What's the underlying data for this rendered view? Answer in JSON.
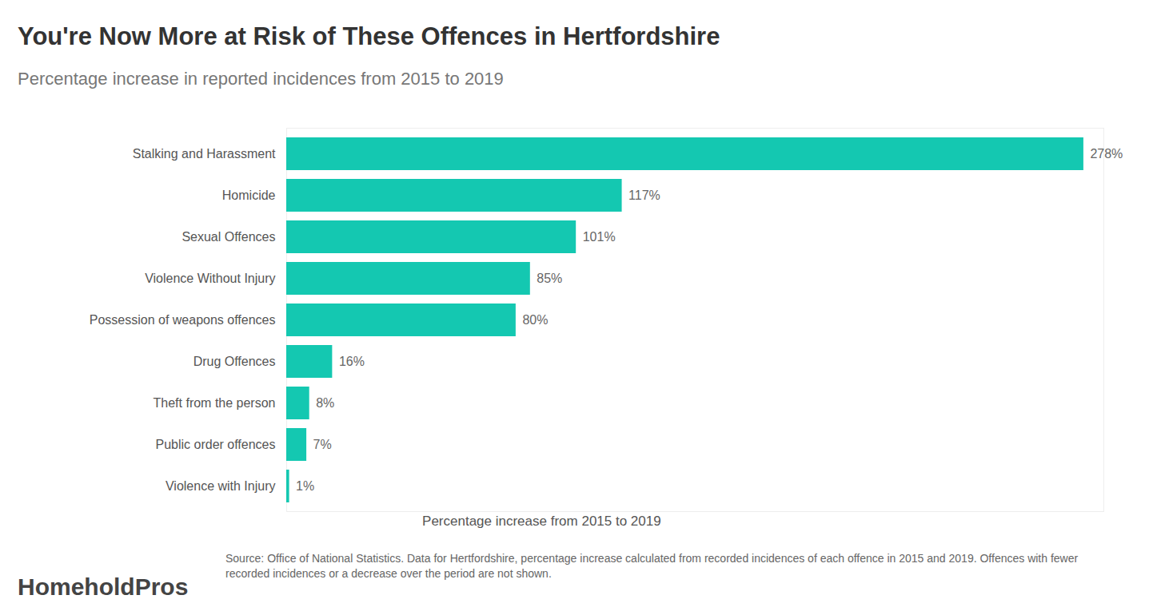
{
  "chart_data": {
    "type": "bar",
    "orientation": "horizontal",
    "title": "You're Now More at Risk of These Offences in Hertfordshire",
    "subtitle": "Percentage increase in reported incidences from 2015 to 2019",
    "x_label": "Percentage increase from 2015 to 2019",
    "categories": [
      "Stalking and Harassment",
      "Homicide",
      "Sexual Offences",
      "Violence Without Injury",
      "Possession of weapons offences",
      "Drug Offences",
      "Theft from the person",
      "Public order offences",
      "Violence with Injury"
    ],
    "values": [
      278,
      117,
      101,
      85,
      80,
      16,
      8,
      7,
      1
    ],
    "value_labels": [
      "278%",
      "117%",
      "101%",
      "85%",
      "80%",
      "16%",
      "8%",
      "7%",
      "1%"
    ],
    "color": "#14c8b1",
    "xlim": [
      0,
      285
    ],
    "xticks": [],
    "grid": false,
    "data_labels": true,
    "tick_labels": "y",
    "caption": "Source: Office of National Statistics. Data for Hertfordshire, percentage increase calculated from recorded incidences of each offence in 2015 and 2019. Offences with fewer recorded incidences or a decrease over the period are not shown.",
    "logo": "HomeholdPros"
  }
}
